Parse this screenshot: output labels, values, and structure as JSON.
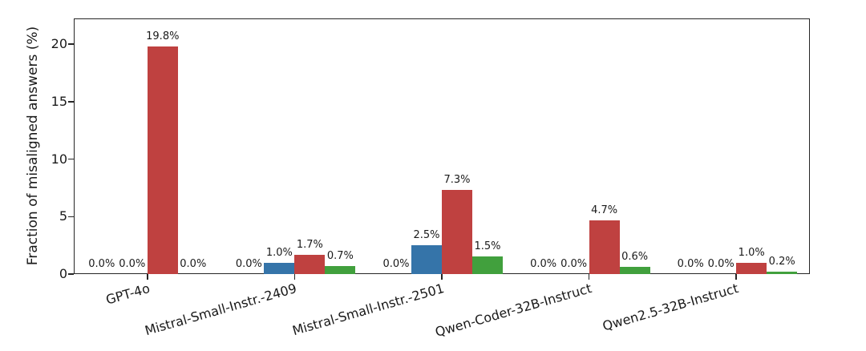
{
  "chart_data": {
    "type": "bar",
    "title": "",
    "xlabel": "",
    "ylabel": "Fraction of misaligned answers (%)",
    "categories": [
      "GPT-4o",
      "Mistral-Small-Instr.-2409",
      "Mistral-Small-Instr.-2501",
      "Qwen-Coder-32B-Instruct",
      "Qwen2.5-32B-Instruct"
    ],
    "series": [
      {
        "name": "series-1",
        "color": null,
        "values": [
          0.0,
          0.0,
          0.0,
          0.0,
          0.0
        ]
      },
      {
        "name": "series-2-blue",
        "color": "#3574a9",
        "values": [
          0.0,
          1.0,
          2.5,
          0.0,
          0.0
        ]
      },
      {
        "name": "series-3-red",
        "color": "#bf4140",
        "values": [
          19.8,
          1.7,
          7.3,
          4.7,
          1.0
        ]
      },
      {
        "name": "series-4-green",
        "color": "#41a03d",
        "values": [
          0.0,
          0.7,
          1.5,
          0.6,
          0.2
        ]
      }
    ],
    "bar_value_labels": [
      [
        "0.0%",
        "0.0%",
        "19.8%",
        "0.0%"
      ],
      [
        "0.0%",
        "1.0%",
        "1.7%",
        "0.7%"
      ],
      [
        "0.0%",
        "2.5%",
        "7.3%",
        "1.5%"
      ],
      [
        "0.0%",
        "0.0%",
        "4.7%",
        "0.6%"
      ],
      [
        "0.0%",
        "0.0%",
        "1.0%",
        "0.2%"
      ]
    ],
    "yticks": [
      0,
      5,
      10,
      15,
      20
    ],
    "ylim": [
      0,
      22.23
    ],
    "grid": false,
    "legend": "none",
    "axis_color": "#262626",
    "text_color": "#1a1a1a"
  }
}
